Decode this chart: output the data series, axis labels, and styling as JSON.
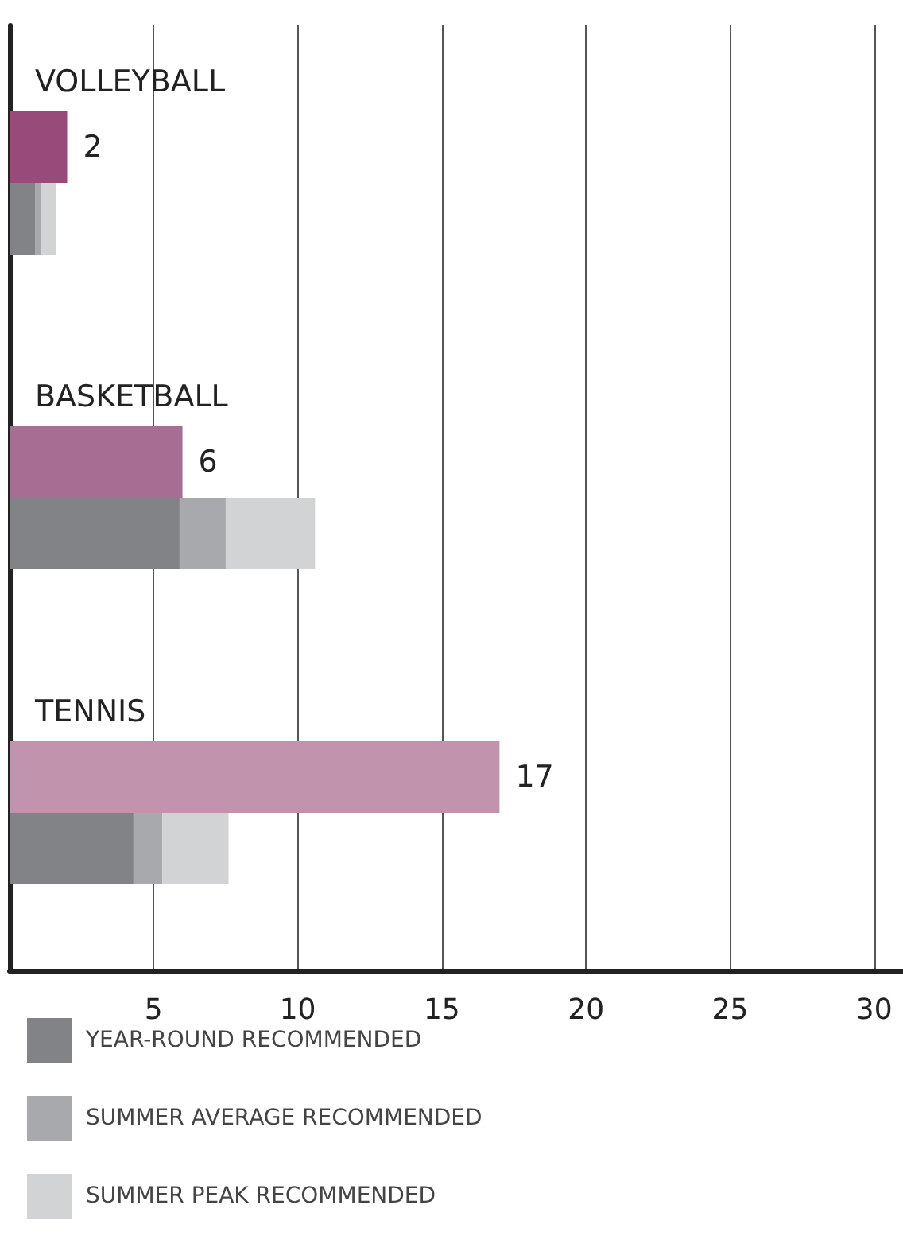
{
  "chart_data": {
    "type": "bar",
    "orientation": "horizontal",
    "categories": [
      "VOLLEYBALL",
      "BASKETBALL",
      "TENNIS"
    ],
    "series": [
      {
        "colors": [
          "#984a7a",
          "#a86d92",
          "#c193ad"
        ],
        "values": [
          2,
          6,
          17
        ],
        "value_labels": [
          "2",
          "6",
          "17"
        ]
      },
      {
        "name": "YEAR-ROUND RECOMMENDED",
        "color": "#818386",
        "values": [
          0.9,
          5.9,
          4.3
        ],
        "base": [
          0,
          0,
          0
        ]
      },
      {
        "name": "SUMMER AVERAGE RECOMMENDED",
        "color": "#a7a9ac",
        "values": [
          0.2,
          1.6,
          1.0
        ],
        "base": [
          0.9,
          5.9,
          4.3
        ]
      },
      {
        "name": "SUMMER PEAK RECOMMENDED",
        "color": "#d1d3d4",
        "values": [
          0.5,
          3.1,
          2.3
        ],
        "base": [
          1.1,
          7.5,
          5.3
        ]
      }
    ],
    "xlim": [
      0,
      31
    ],
    "xticks": [
      5,
      10,
      15,
      20,
      25,
      30
    ],
    "grid": "x",
    "legend": "bottom"
  }
}
